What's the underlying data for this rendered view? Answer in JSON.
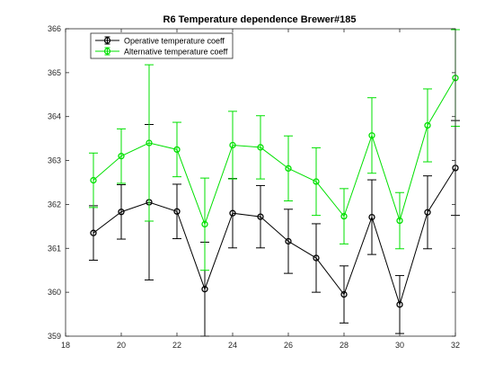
{
  "chart_data": {
    "type": "line",
    "title": "R6 Temperature dependence Brewer#185",
    "xlabel": "",
    "ylabel": "",
    "xlim": [
      18,
      32
    ],
    "ylim": [
      359,
      366
    ],
    "xticks": [
      18,
      20,
      22,
      24,
      26,
      28,
      30,
      32
    ],
    "yticks": [
      359,
      360,
      361,
      362,
      363,
      364,
      365,
      366
    ],
    "grid": false,
    "legend_position": "top-left",
    "x": [
      19,
      20,
      21,
      22,
      23,
      24,
      25,
      26,
      27,
      28,
      29,
      30,
      31,
      32
    ],
    "series": [
      {
        "name": "Operative temperature coeff",
        "color": "#000000",
        "marker": "circle",
        "values": [
          361.35,
          361.83,
          362.05,
          361.84,
          360.07,
          361.8,
          361.72,
          361.16,
          360.78,
          359.95,
          361.71,
          359.72,
          361.82,
          362.83
        ],
        "error": [
          0.62,
          0.62,
          1.77,
          0.62,
          1.07,
          0.79,
          0.71,
          0.73,
          0.78,
          0.65,
          0.85,
          0.66,
          0.83,
          1.08
        ]
      },
      {
        "name": "Alternative temperature coeff",
        "color": "#00e000",
        "marker": "circle",
        "values": [
          362.55,
          363.1,
          363.4,
          363.25,
          361.55,
          363.35,
          363.3,
          362.82,
          362.52,
          361.73,
          363.57,
          361.63,
          363.8,
          364.88
        ],
        "error": [
          0.62,
          0.62,
          1.78,
          0.62,
          1.05,
          0.77,
          0.72,
          0.74,
          0.77,
          0.63,
          0.86,
          0.64,
          0.83,
          1.1
        ]
      }
    ]
  }
}
